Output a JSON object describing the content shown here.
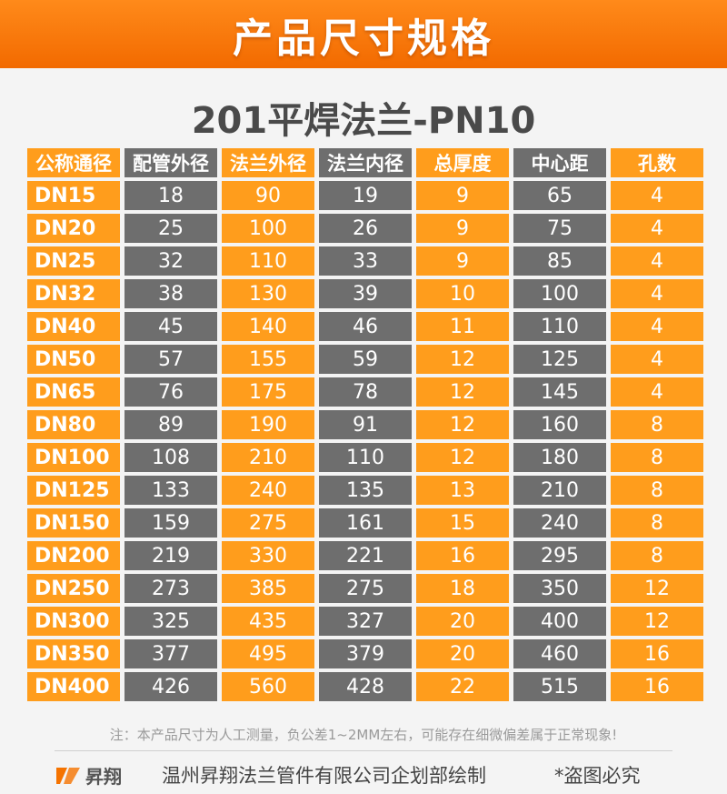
{
  "banner": {
    "title": "产品尺寸规格"
  },
  "subtitle": "201平焊法兰-PN10",
  "table": {
    "headers": [
      "公称通径",
      "配管外径",
      "法兰外径",
      "法兰内径",
      "总厚度",
      "中心距",
      "孔数"
    ],
    "header_colors": [
      "orange",
      "gray",
      "orange",
      "gray",
      "orange",
      "gray",
      "orange"
    ],
    "column_colors": [
      "orange",
      "gray",
      "orange",
      "gray",
      "orange",
      "gray",
      "orange"
    ],
    "rows": [
      [
        "DN15",
        "18",
        "90",
        "19",
        "9",
        "65",
        "4"
      ],
      [
        "DN20",
        "25",
        "100",
        "26",
        "9",
        "75",
        "4"
      ],
      [
        "DN25",
        "32",
        "110",
        "33",
        "9",
        "85",
        "4"
      ],
      [
        "DN32",
        "38",
        "130",
        "39",
        "10",
        "100",
        "4"
      ],
      [
        "DN40",
        "45",
        "140",
        "46",
        "11",
        "110",
        "4"
      ],
      [
        "DN50",
        "57",
        "155",
        "59",
        "12",
        "125",
        "4"
      ],
      [
        "DN65",
        "76",
        "175",
        "78",
        "12",
        "145",
        "4"
      ],
      [
        "DN80",
        "89",
        "190",
        "91",
        "12",
        "160",
        "8"
      ],
      [
        "DN100",
        "108",
        "210",
        "110",
        "12",
        "180",
        "8"
      ],
      [
        "DN125",
        "133",
        "240",
        "135",
        "13",
        "210",
        "8"
      ],
      [
        "DN150",
        "159",
        "275",
        "161",
        "15",
        "240",
        "8"
      ],
      [
        "DN200",
        "219",
        "330",
        "221",
        "16",
        "295",
        "8"
      ],
      [
        "DN250",
        "273",
        "385",
        "275",
        "18",
        "350",
        "12"
      ],
      [
        "DN300",
        "325",
        "435",
        "327",
        "20",
        "400",
        "12"
      ],
      [
        "DN350",
        "377",
        "495",
        "379",
        "20",
        "460",
        "16"
      ],
      [
        "DN400",
        "426",
        "560",
        "428",
        "22",
        "515",
        "16"
      ]
    ]
  },
  "note": "注：本产品尺寸为人工测量，负公差1~2MM左右，可能存在细微偏差属于正常现象!",
  "footer": {
    "logo_text": "昇翔",
    "credit": "温州昇翔法兰管件有限公司企划部绘制",
    "warning": "*盗图必究"
  },
  "colors": {
    "orange": "#ff9d1c",
    "gray": "#6e6e6e",
    "banner": "#f57300"
  }
}
